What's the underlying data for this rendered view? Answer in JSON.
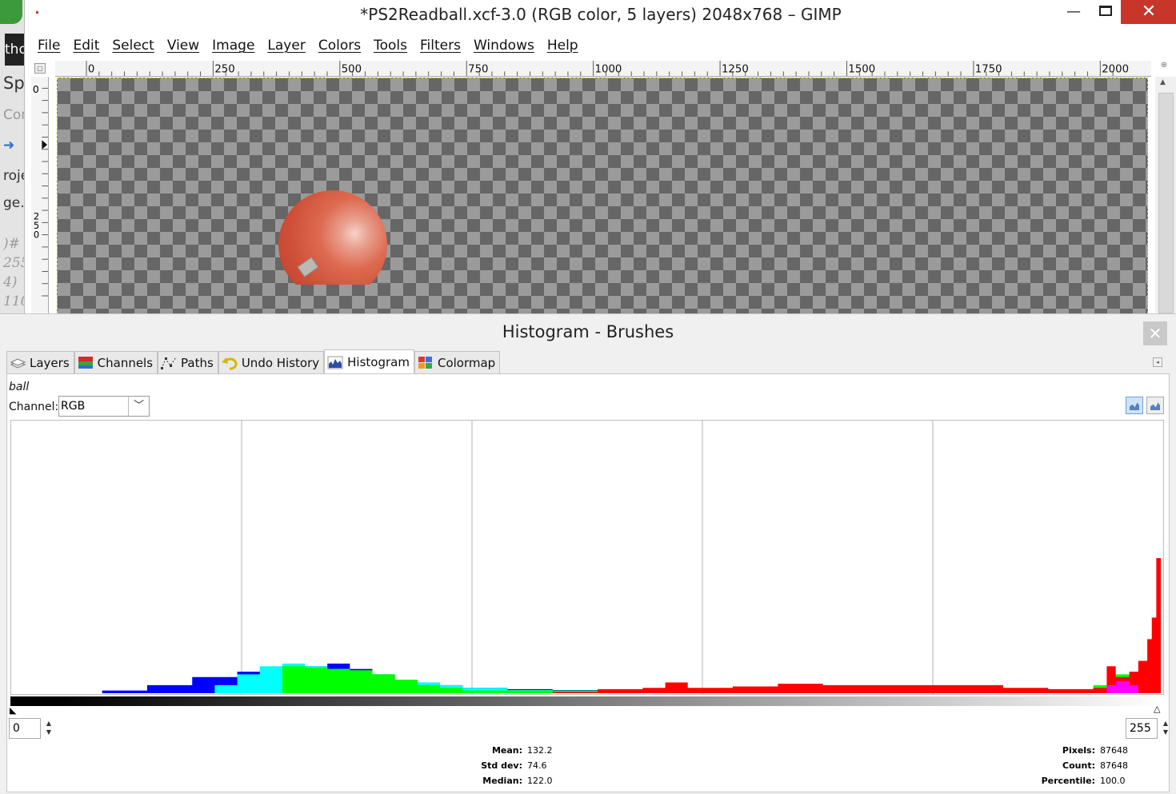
{
  "window": {
    "title": "*PS2Readball.xcf-3.0 (RGB color, 5 layers) 2048x768 – GIMP",
    "minimize": "—",
    "close": "✕"
  },
  "background_window": {
    "fragments": [
      "tho",
      "Sp",
      "Cor",
      "roje",
      "ge.",
      ")#",
      "255",
      "4)",
      "110"
    ]
  },
  "menu": [
    "File",
    "Edit",
    "Select",
    "View",
    "Image",
    "Layer",
    "Colors",
    "Tools",
    "Filters",
    "Windows",
    "Help"
  ],
  "ruler": {
    "h_labels": [
      "0",
      "250",
      "500",
      "750",
      "1000",
      "1250",
      "1500",
      "1750",
      "2000"
    ],
    "v_labels": [
      "0",
      "2",
      "5",
      "0"
    ]
  },
  "dock": {
    "title": "Histogram - Brushes",
    "close": "✕",
    "tabs": [
      {
        "label": "Layers",
        "icon": "layers-icon"
      },
      {
        "label": "Channels",
        "icon": "channels-icon"
      },
      {
        "label": "Paths",
        "icon": "paths-icon"
      },
      {
        "label": "Undo History",
        "icon": "undo-history-icon"
      },
      {
        "label": "Histogram",
        "icon": "histogram-icon",
        "active": true
      },
      {
        "label": "Colormap",
        "icon": "colormap-icon"
      }
    ]
  },
  "histogram": {
    "layer": "ball",
    "channel_label": "Channel:",
    "channel_value": "RGB",
    "range_start": "0",
    "range_end": "255",
    "stats": {
      "mean_label": "Mean:",
      "mean": "132.2",
      "stddev_label": "Std dev:",
      "stddev": "74.6",
      "median_label": "Median:",
      "median": "122.0",
      "pixels_label": "Pixels:",
      "pixels": "87648",
      "count_label": "Count:",
      "count": "87648",
      "percentile_label": "Percentile:",
      "percentile": "100.0"
    }
  },
  "chart_data": {
    "type": "area",
    "x_range": [
      0,
      255
    ],
    "series": [
      {
        "color": "#0000ff",
        "x": [
          20,
          30,
          40,
          50,
          55,
          60,
          65,
          70,
          75,
          80,
          85,
          90,
          95,
          100,
          110,
          120,
          140,
          160,
          180,
          200,
          220,
          240,
          255
        ],
        "values": [
          0.01,
          0.03,
          0.06,
          0.08,
          0.085,
          0.09,
          0.1,
          0.11,
          0.09,
          0.07,
          0.05,
          0.035,
          0.03,
          0.02,
          0.015,
          0.012,
          0.01,
          0.01,
          0.01,
          0.008,
          0.006,
          0.004,
          0.0
        ]
      },
      {
        "color": "#00ffff",
        "x": [
          40,
          45,
          50,
          55,
          60,
          65,
          70,
          75,
          80,
          85,
          90,
          95,
          100,
          110,
          120,
          140,
          160,
          180,
          200,
          240,
          255
        ],
        "values": [
          0.0,
          0.03,
          0.07,
          0.1,
          0.11,
          0.1,
          0.09,
          0.08,
          0.07,
          0.05,
          0.04,
          0.03,
          0.02,
          0.012,
          0.01,
          0.008,
          0.006,
          0.004,
          0.003,
          0.0,
          0.0
        ]
      },
      {
        "color": "#00ff00",
        "x": [
          55,
          60,
          65,
          70,
          75,
          80,
          85,
          90,
          95,
          100,
          240,
          245,
          250,
          255
        ],
        "values": [
          0.0,
          0.1,
          0.095,
          0.09,
          0.085,
          0.07,
          0.05,
          0.03,
          0.02,
          0.01,
          0.03,
          0.07,
          0.02,
          0.0
        ]
      },
      {
        "color": "#ff0000",
        "x": [
          120,
          130,
          140,
          145,
          150,
          160,
          170,
          180,
          190,
          200,
          210,
          220,
          230,
          240,
          243,
          245,
          248,
          250,
          252,
          253,
          254,
          255
        ],
        "values": [
          0.005,
          0.015,
          0.02,
          0.04,
          0.02,
          0.025,
          0.035,
          0.03,
          0.03,
          0.03,
          0.03,
          0.02,
          0.015,
          0.02,
          0.1,
          0.06,
          0.08,
          0.12,
          0.2,
          0.28,
          0.5,
          1.0
        ]
      },
      {
        "color": "#ff00ff",
        "x": [
          240,
          243,
          245,
          248,
          250,
          255
        ],
        "values": [
          0.0,
          0.03,
          0.045,
          0.03,
          0.0,
          0.0
        ]
      }
    ]
  }
}
